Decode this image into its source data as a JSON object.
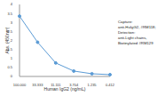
{
  "chart_data": {
    "type": "line",
    "x_label": "Human IgG2 (ng/mL)",
    "y_label": "Abs. (450nm)",
    "categories": [
      "100.000",
      "33.333",
      "11.111",
      "3.704",
      "1.235",
      "0.412"
    ],
    "values": [
      3.35,
      1.9,
      0.75,
      0.3,
      0.15,
      0.1
    ],
    "color": "#5b9bd5",
    "marker": "circle",
    "ylim": [
      0,
      4
    ],
    "yticks": [
      0,
      0.5,
      1,
      1.5,
      2,
      2.5,
      3,
      3.5,
      4
    ],
    "grid": false,
    "annotation": [
      "Capture:",
      "anti-HuIgG2, #RM118;",
      "Detection:",
      "anti-Light chains,",
      "Biotinylated #RM129"
    ]
  }
}
